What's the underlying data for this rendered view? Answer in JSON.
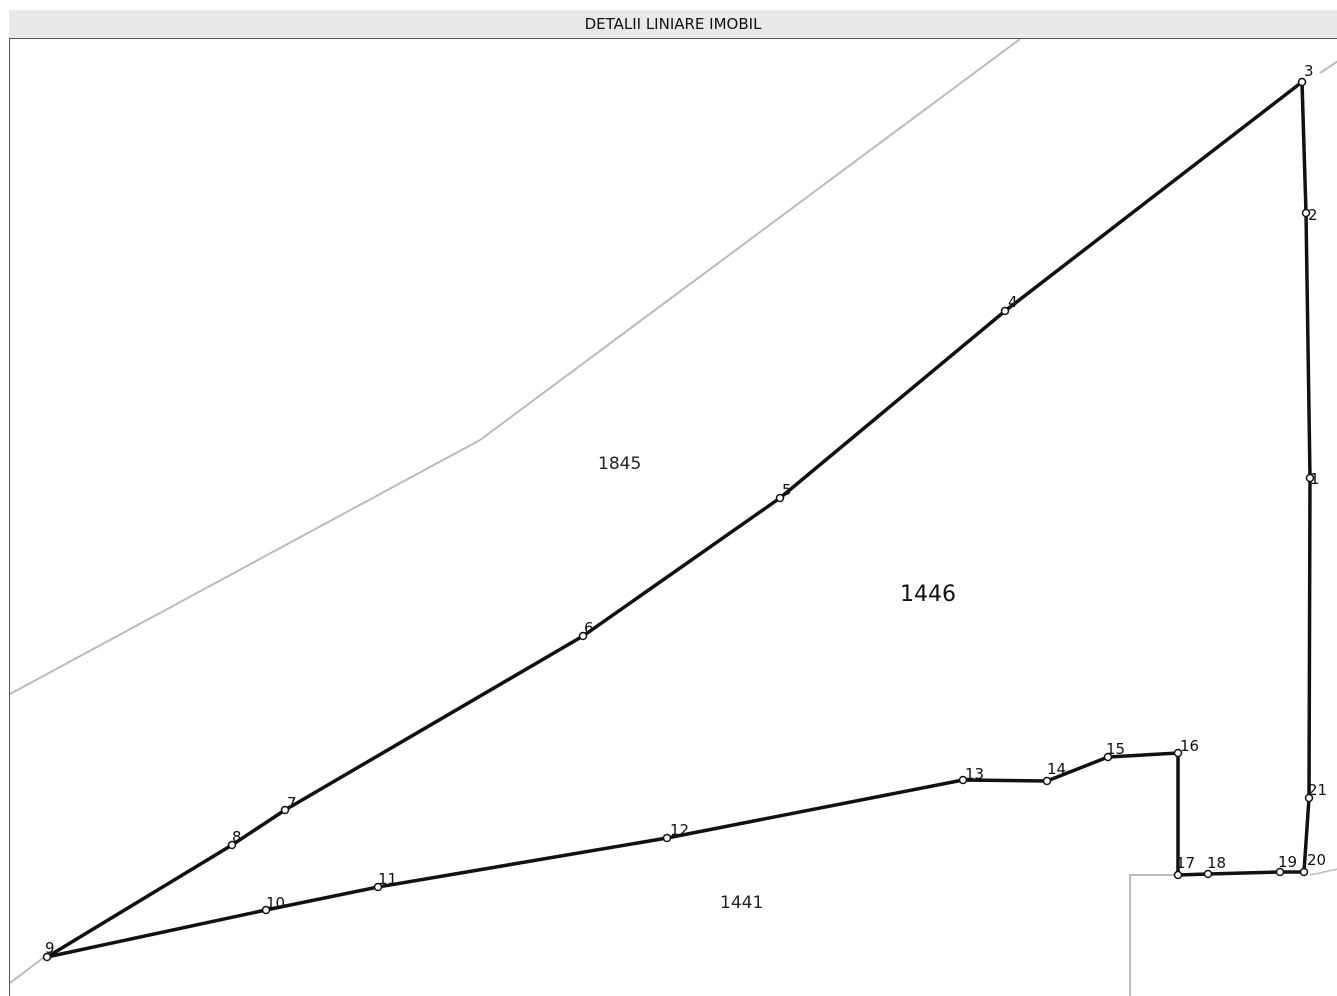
{
  "header": {
    "title": "DETALII LINIARE IMOBIL"
  },
  "parcels": {
    "main": "1446",
    "north": "1845",
    "south": "1441"
  },
  "points": [
    "1",
    "2",
    "3",
    "4",
    "5",
    "6",
    "7",
    "8",
    "9",
    "10",
    "11",
    "12",
    "13",
    "14",
    "15",
    "16",
    "17",
    "18",
    "19",
    "20",
    "21"
  ],
  "colors": {
    "boundary": "#111111",
    "neighbor": "#bbbbbb",
    "header_bg": "#e9e9e9"
  }
}
